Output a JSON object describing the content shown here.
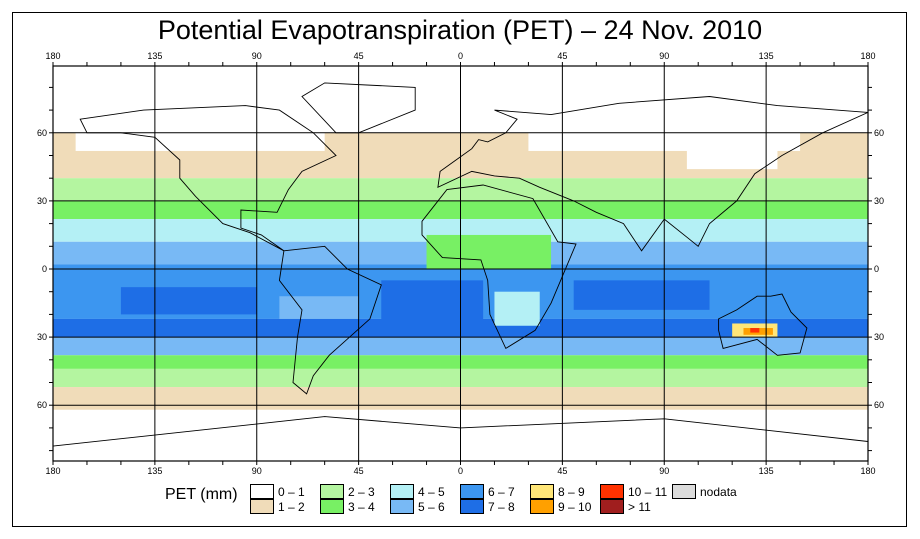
{
  "title": "Potential Evapotranspiration (PET) – 24 Nov. 2010",
  "axes": {
    "lon_labels": [
      "180",
      "135",
      "90",
      "45",
      "0",
      "45",
      "90",
      "135",
      "180"
    ],
    "lat_labels": [
      "60",
      "30",
      "0",
      "30",
      "60"
    ]
  },
  "legend": {
    "title": "PET (mm)",
    "items": [
      {
        "label": "0 – 1",
        "color": "#ffffff"
      },
      {
        "label": "1 – 2",
        "color": "#f0dcb9"
      },
      {
        "label": "2 – 3",
        "color": "#b4f5a0"
      },
      {
        "label": "3 – 4",
        "color": "#78f064"
      },
      {
        "label": "4 – 5",
        "color": "#b4f0f5"
      },
      {
        "label": "5 – 6",
        "color": "#78b9f5"
      },
      {
        "label": "6 – 7",
        "color": "#3c96f0"
      },
      {
        "label": "7 – 8",
        "color": "#1e6ee6"
      },
      {
        "label": "8 – 9",
        "color": "#ffe678"
      },
      {
        "label": "9 – 10",
        "color": "#ffa000"
      },
      {
        "label": "10 – 11",
        "color": "#ff3200"
      },
      {
        "label": "> 11",
        "color": "#a01e1e"
      },
      {
        "label": "nodata",
        "color": "#dcdcdc"
      }
    ]
  }
}
